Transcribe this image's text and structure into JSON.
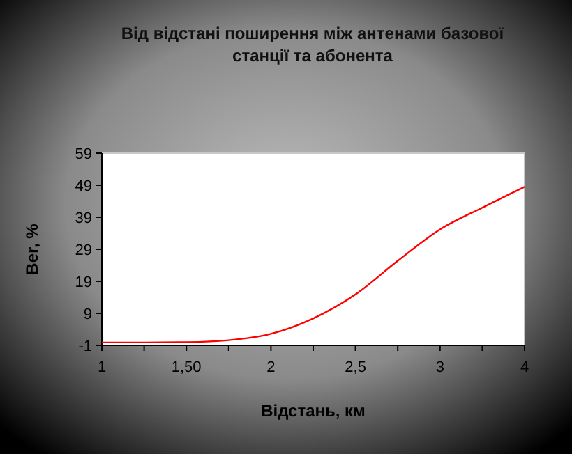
{
  "chart_data": {
    "type": "line",
    "title": "Від відстані поширення між антенами базової станції та абонента",
    "xlabel": "Відстань, км",
    "ylabel": "Ber, %",
    "categories": [
      "1",
      null,
      "1,50",
      null,
      "2",
      null,
      "2,5",
      null,
      "3",
      null,
      "4"
    ],
    "series": [
      {
        "color": "#ff0000",
        "values": [
          -0.1,
          -0.1,
          0,
          0.6,
          2.6,
          7.4,
          14.9,
          25.4,
          35.2,
          42,
          48.5
        ]
      }
    ],
    "ylim": [
      -1,
      59
    ],
    "yticks": [
      -1,
      9,
      19,
      29,
      39,
      49,
      59
    ],
    "marker": "none",
    "line_style": "solid"
  }
}
